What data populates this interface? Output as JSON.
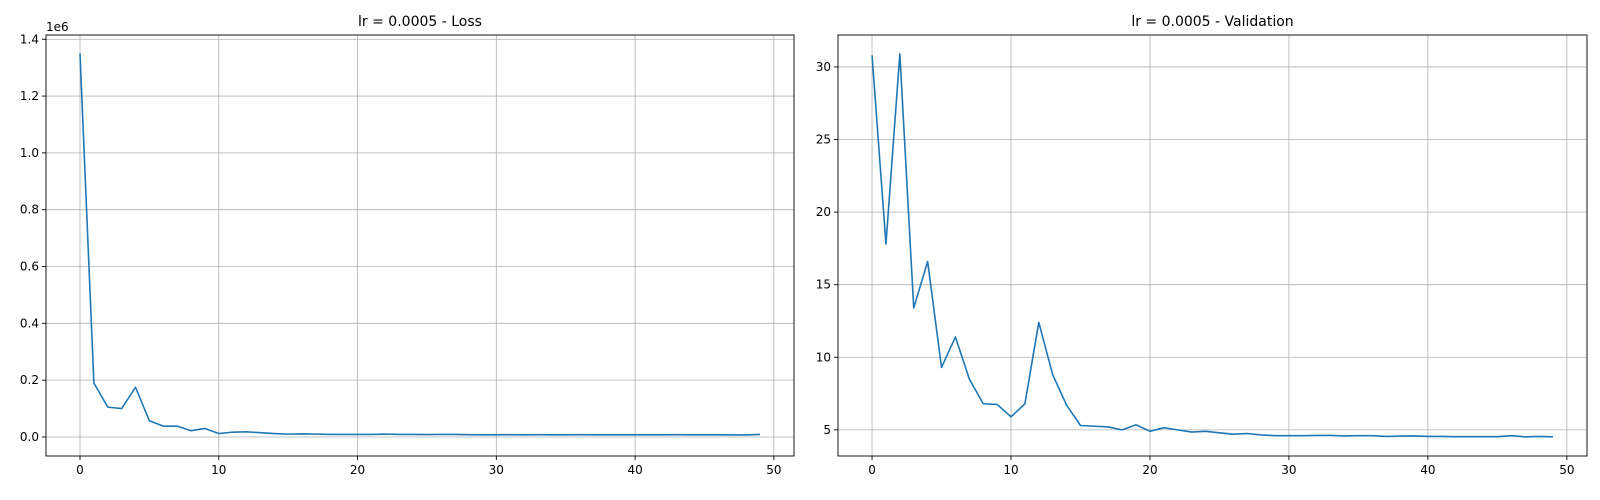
{
  "chart_data": [
    {
      "type": "line",
      "title": "lr = 0.0005 - Loss",
      "xlabel": "",
      "ylabel": "",
      "offset_text": "1e6",
      "grid": true,
      "xlim": [
        -2.45,
        51.45
      ],
      "ylim": [
        -67000,
        1415000
      ],
      "xticks": [
        0,
        10,
        20,
        30,
        40,
        50
      ],
      "xtick_labels": [
        "0",
        "10",
        "20",
        "30",
        "40",
        "50"
      ],
      "yticks": [
        0,
        200000,
        400000,
        600000,
        800000,
        1000000,
        1200000,
        1400000
      ],
      "ytick_labels": [
        "0.0",
        "0.2",
        "0.4",
        "0.6",
        "0.8",
        "1.0",
        "1.2",
        "1.4"
      ],
      "series": [
        {
          "color": "#1f77b4",
          "x": [
            0,
            1,
            2,
            3,
            4,
            5,
            6,
            7,
            8,
            9,
            10,
            11,
            12,
            13,
            14,
            15,
            16,
            17,
            18,
            19,
            20,
            21,
            22,
            23,
            24,
            25,
            26,
            27,
            28,
            29,
            30,
            31,
            32,
            33,
            34,
            35,
            36,
            37,
            38,
            39,
            40,
            41,
            42,
            43,
            44,
            45,
            46,
            47,
            48,
            49
          ],
          "values": [
            1350000,
            190000,
            105000,
            100000,
            175000,
            57000,
            38000,
            38000,
            22000,
            30000,
            12000,
            17000,
            18000,
            15000,
            12000,
            10000,
            11000,
            10000,
            9000,
            9000,
            9000,
            9000,
            10000,
            9000,
            9000,
            8500,
            9000,
            9000,
            8000,
            7500,
            7500,
            8000,
            7500,
            8000,
            7500,
            7500,
            8000,
            7500,
            7500,
            7500,
            7500,
            7500,
            7500,
            8000,
            7500,
            7500,
            7500,
            7000,
            7000,
            9000
          ]
        }
      ]
    },
    {
      "type": "line",
      "title": "lr = 0.0005 - Validation",
      "xlabel": "",
      "ylabel": "",
      "grid": true,
      "xlim": [
        -2.45,
        51.45
      ],
      "ylim": [
        3.2,
        32.2
      ],
      "xticks": [
        0,
        10,
        20,
        30,
        40,
        50
      ],
      "xtick_labels": [
        "0",
        "10",
        "20",
        "30",
        "40",
        "50"
      ],
      "yticks": [
        5,
        10,
        15,
        20,
        25,
        30
      ],
      "ytick_labels": [
        "5",
        "10",
        "15",
        "20",
        "25",
        "30"
      ],
      "series": [
        {
          "color": "#1f77b4",
          "x": [
            0,
            1,
            2,
            3,
            4,
            5,
            6,
            7,
            8,
            9,
            10,
            11,
            12,
            13,
            14,
            15,
            16,
            17,
            18,
            19,
            20,
            21,
            22,
            23,
            24,
            25,
            26,
            27,
            28,
            29,
            30,
            31,
            32,
            33,
            34,
            35,
            36,
            37,
            38,
            39,
            40,
            41,
            42,
            43,
            44,
            45,
            46,
            47,
            48,
            49
          ],
          "values": [
            30.8,
            17.8,
            30.9,
            13.4,
            16.6,
            9.3,
            11.4,
            8.5,
            6.8,
            6.75,
            5.9,
            6.8,
            12.4,
            8.8,
            6.7,
            5.3,
            5.25,
            5.2,
            5.0,
            5.35,
            4.9,
            5.15,
            5.0,
            4.85,
            4.9,
            4.8,
            4.7,
            4.75,
            4.65,
            4.6,
            4.6,
            4.6,
            4.62,
            4.62,
            4.58,
            4.6,
            4.6,
            4.55,
            4.57,
            4.58,
            4.55,
            4.55,
            4.53,
            4.53,
            4.53,
            4.53,
            4.6,
            4.52,
            4.55,
            4.52
          ]
        }
      ]
    }
  ]
}
